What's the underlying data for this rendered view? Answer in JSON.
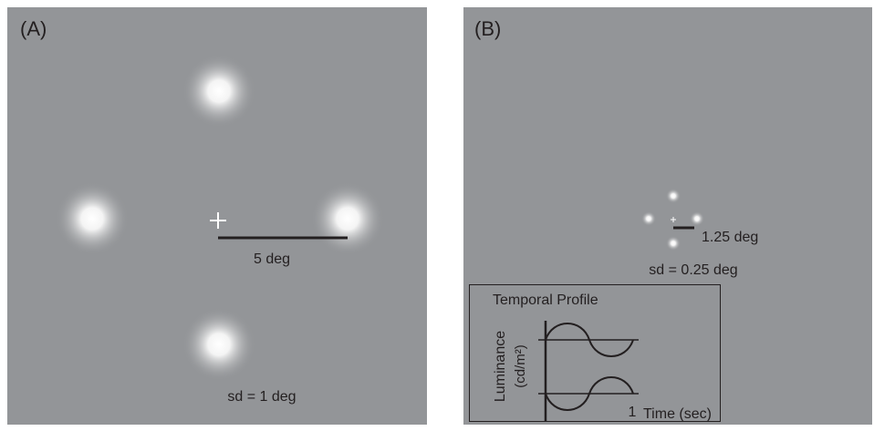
{
  "panel_a": {
    "label": "(A)",
    "scale_label": "5 deg",
    "sd_label": "sd = 1 deg"
  },
  "panel_b": {
    "label": "(B)",
    "scale_label": "1.25 deg",
    "sd_label": "sd = 0.25 deg",
    "inset": {
      "title": "Temporal Profile",
      "y_label": "Luminance",
      "y_unit": "(cd/m²)",
      "x_tick": "1",
      "x_label": "Time (sec)"
    }
  }
}
